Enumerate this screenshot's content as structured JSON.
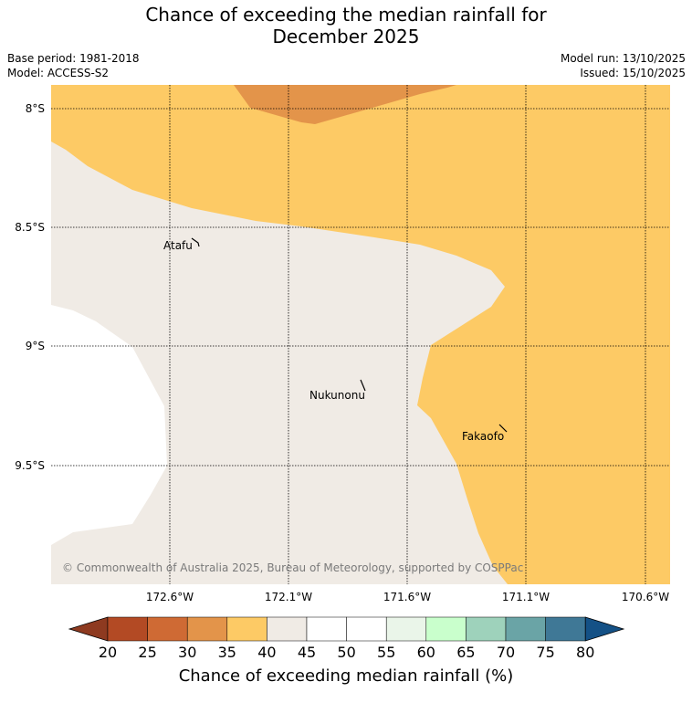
{
  "header": {
    "title_line1": "Chance of exceeding the median rainfall for",
    "title_line2": "December 2025",
    "base_period": "Base period: 1981-2018",
    "model": "Model: ACCESS-S2",
    "model_run": "Model run: 13/10/2025",
    "issued": "Issued: 15/10/2025"
  },
  "map": {
    "lat_labels": [
      "8°S",
      "8.5°S",
      "9°S",
      "9.5°S"
    ],
    "lon_labels": [
      "172.6°W",
      "172.1°W",
      "171.6°W",
      "171.1°W",
      "170.6°W"
    ],
    "places": [
      "Atafu",
      "Nukunonu",
      "Fakaofo"
    ],
    "copyright": "© Commonwealth of Australia 2025, Bureau of Meteorology, supported by COSPPac",
    "colors": {
      "band_40_45": "#f0ebe5",
      "band_35_40": "#fdca65",
      "band_30_35": "#e3944a"
    }
  },
  "colorbar": {
    "tick_labels": [
      "20",
      "25",
      "30",
      "35",
      "40",
      "45",
      "50",
      "55",
      "60",
      "65",
      "70",
      "75",
      "80"
    ],
    "colors": [
      "#8e3a20",
      "#b34a24",
      "#cf6a34",
      "#e3944a",
      "#fdca65",
      "#f0ebe5",
      "#ffffff",
      "#ffffff",
      "#eaf5e9",
      "#c9ffcc",
      "#9ed2bb",
      "#6aa4a6",
      "#3f7896",
      "#145186"
    ],
    "title": "Chance of exceeding median rainfall (%)"
  }
}
